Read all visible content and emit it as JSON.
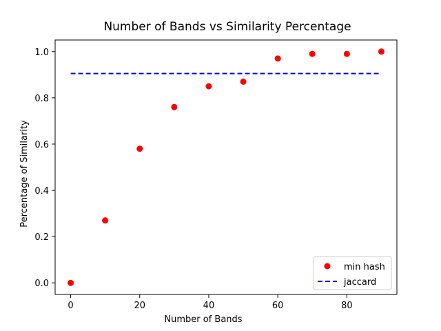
{
  "chart_data": {
    "type": "scatter",
    "title": "Number of Bands vs Similarity Percentage",
    "xlabel": "Number of Bands",
    "ylabel": "Percentage of Similarity",
    "xlim": [
      -4.5,
      94.5
    ],
    "ylim": [
      -0.05,
      1.05
    ],
    "xticks": [
      0,
      20,
      40,
      60,
      80
    ],
    "yticks": [
      0.0,
      0.2,
      0.4,
      0.6,
      0.8,
      1.0
    ],
    "xtick_labels": [
      "0",
      "20",
      "40",
      "60",
      "80"
    ],
    "ytick_labels": [
      "0.0",
      "0.2",
      "0.4",
      "0.6",
      "0.8",
      "1.0"
    ],
    "grid": false,
    "legend_position": "bottom-right",
    "series": [
      {
        "name": "min hash",
        "kind": "scatter",
        "color": "#ff0000",
        "x": [
          0,
          10,
          20,
          30,
          40,
          50,
          60,
          70,
          80,
          90
        ],
        "y": [
          0.0,
          0.27,
          0.58,
          0.76,
          0.85,
          0.87,
          0.97,
          0.99,
          0.99,
          1.0
        ]
      },
      {
        "name": "jaccard",
        "kind": "dashed-line",
        "color": "#0000ff",
        "x": [
          0,
          90
        ],
        "y": [
          0.905,
          0.905
        ]
      }
    ]
  }
}
